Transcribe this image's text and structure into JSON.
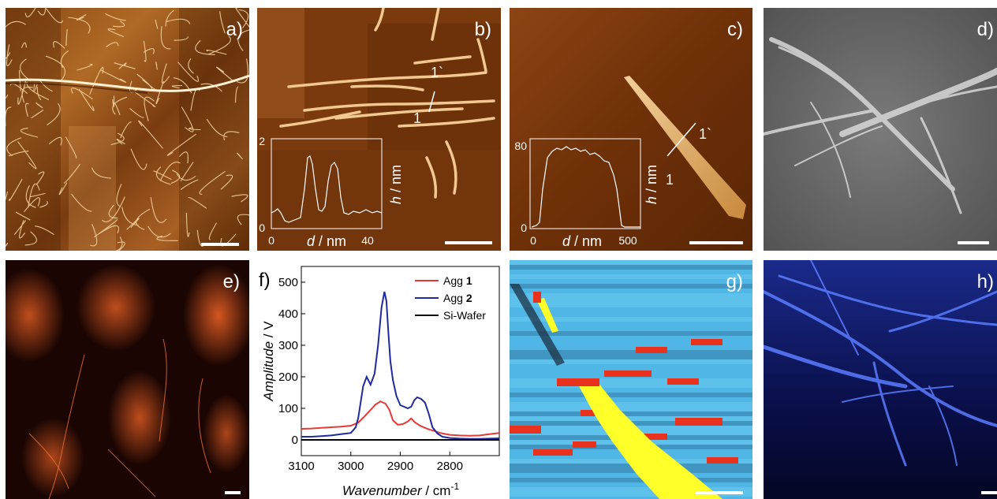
{
  "panels": {
    "a": {
      "label": "a)"
    },
    "b": {
      "label": "b)",
      "mark_1": "1",
      "mark_1p": "1`",
      "inset": {
        "y_ticks": [
          "0",
          "2"
        ],
        "x_ticks": [
          "0",
          "40"
        ],
        "xlabel_var": "d",
        "xlabel_unit": " / nm",
        "ylabel_var": "h",
        "ylabel_unit": " / nm"
      }
    },
    "c": {
      "label": "c)",
      "mark_1": "1",
      "mark_1p": "1`",
      "inset": {
        "y_ticks": [
          "0",
          "80"
        ],
        "x_ticks": [
          "0",
          "500"
        ],
        "xlabel_var": "d",
        "xlabel_unit": " / nm",
        "ylabel_var": "h",
        "ylabel_unit": " / nm"
      }
    },
    "d": {
      "label": "d)"
    },
    "e": {
      "label": "e)"
    },
    "f": {
      "label": "f)"
    },
    "g": {
      "label": "g)"
    },
    "h": {
      "label": "h)"
    }
  },
  "colors": {
    "afm_dark": "#5a2a08",
    "afm_mid": "#a8601c",
    "afm_light": "#e8c088",
    "sem_bg": "#6c6c6c",
    "fluor_red": "#ff5a1e",
    "fluor_blue": "#3a5cff",
    "map_blue": "#4fb6e6",
    "map_red": "#e8321e",
    "map_yellow": "#ffff2a",
    "agg1": "#e53935",
    "agg2": "#1f2a9e",
    "wafer": "#000000"
  },
  "chart_data": {
    "type": "line",
    "xlabel": "Wavenumber",
    "xlabel_unit": " / cm",
    "xlabel_exp": "-1",
    "ylabel": "Amplitude",
    "ylabel_unit": " / V",
    "xlim": [
      3100,
      2700
    ],
    "ylim": [
      -50,
      550
    ],
    "x_ticks": [
      3100,
      3000,
      2900,
      2800
    ],
    "y_ticks": [
      0,
      100,
      200,
      300,
      400,
      500
    ],
    "legend_position": "top-right",
    "series": [
      {
        "name_prefix": "Agg ",
        "name_bold": "1",
        "color": "#e53935",
        "x": [
          3100,
          3080,
          3060,
          3040,
          3020,
          3000,
          2985,
          2975,
          2960,
          2950,
          2940,
          2930,
          2922,
          2915,
          2905,
          2895,
          2885,
          2878,
          2870,
          2860,
          2850,
          2840,
          2830,
          2820,
          2800,
          2780,
          2760,
          2740,
          2720,
          2700
        ],
        "y": [
          35,
          36,
          38,
          40,
          42,
          45,
          55,
          70,
          95,
          112,
          122,
          115,
          95,
          62,
          48,
          50,
          58,
          68,
          55,
          45,
          38,
          32,
          28,
          22,
          16,
          14,
          13,
          14,
          18,
          22
        ]
      },
      {
        "name_prefix": "Agg ",
        "name_bold": "2",
        "color": "#1f2a9e",
        "x": [
          3100,
          3080,
          3060,
          3040,
          3020,
          3000,
          2990,
          2985,
          2975,
          2968,
          2960,
          2952,
          2945,
          2938,
          2932,
          2928,
          2924,
          2920,
          2915,
          2908,
          2900,
          2892,
          2885,
          2878,
          2872,
          2866,
          2858,
          2850,
          2842,
          2835,
          2825,
          2815,
          2800,
          2780,
          2760,
          2740,
          2720,
          2700
        ],
        "y": [
          10,
          10,
          12,
          14,
          18,
          22,
          40,
          70,
          170,
          200,
          175,
          210,
          300,
          420,
          470,
          440,
          340,
          250,
          190,
          140,
          110,
          105,
          100,
          105,
          125,
          135,
          130,
          118,
          80,
          40,
          20,
          10,
          6,
          4,
          3,
          3,
          4,
          5
        ]
      },
      {
        "name": "Si-Wafer",
        "color": "#000000",
        "x": [
          3100,
          3000,
          2900,
          2800,
          2700
        ],
        "y": [
          0,
          0,
          0,
          0,
          0
        ]
      }
    ]
  }
}
